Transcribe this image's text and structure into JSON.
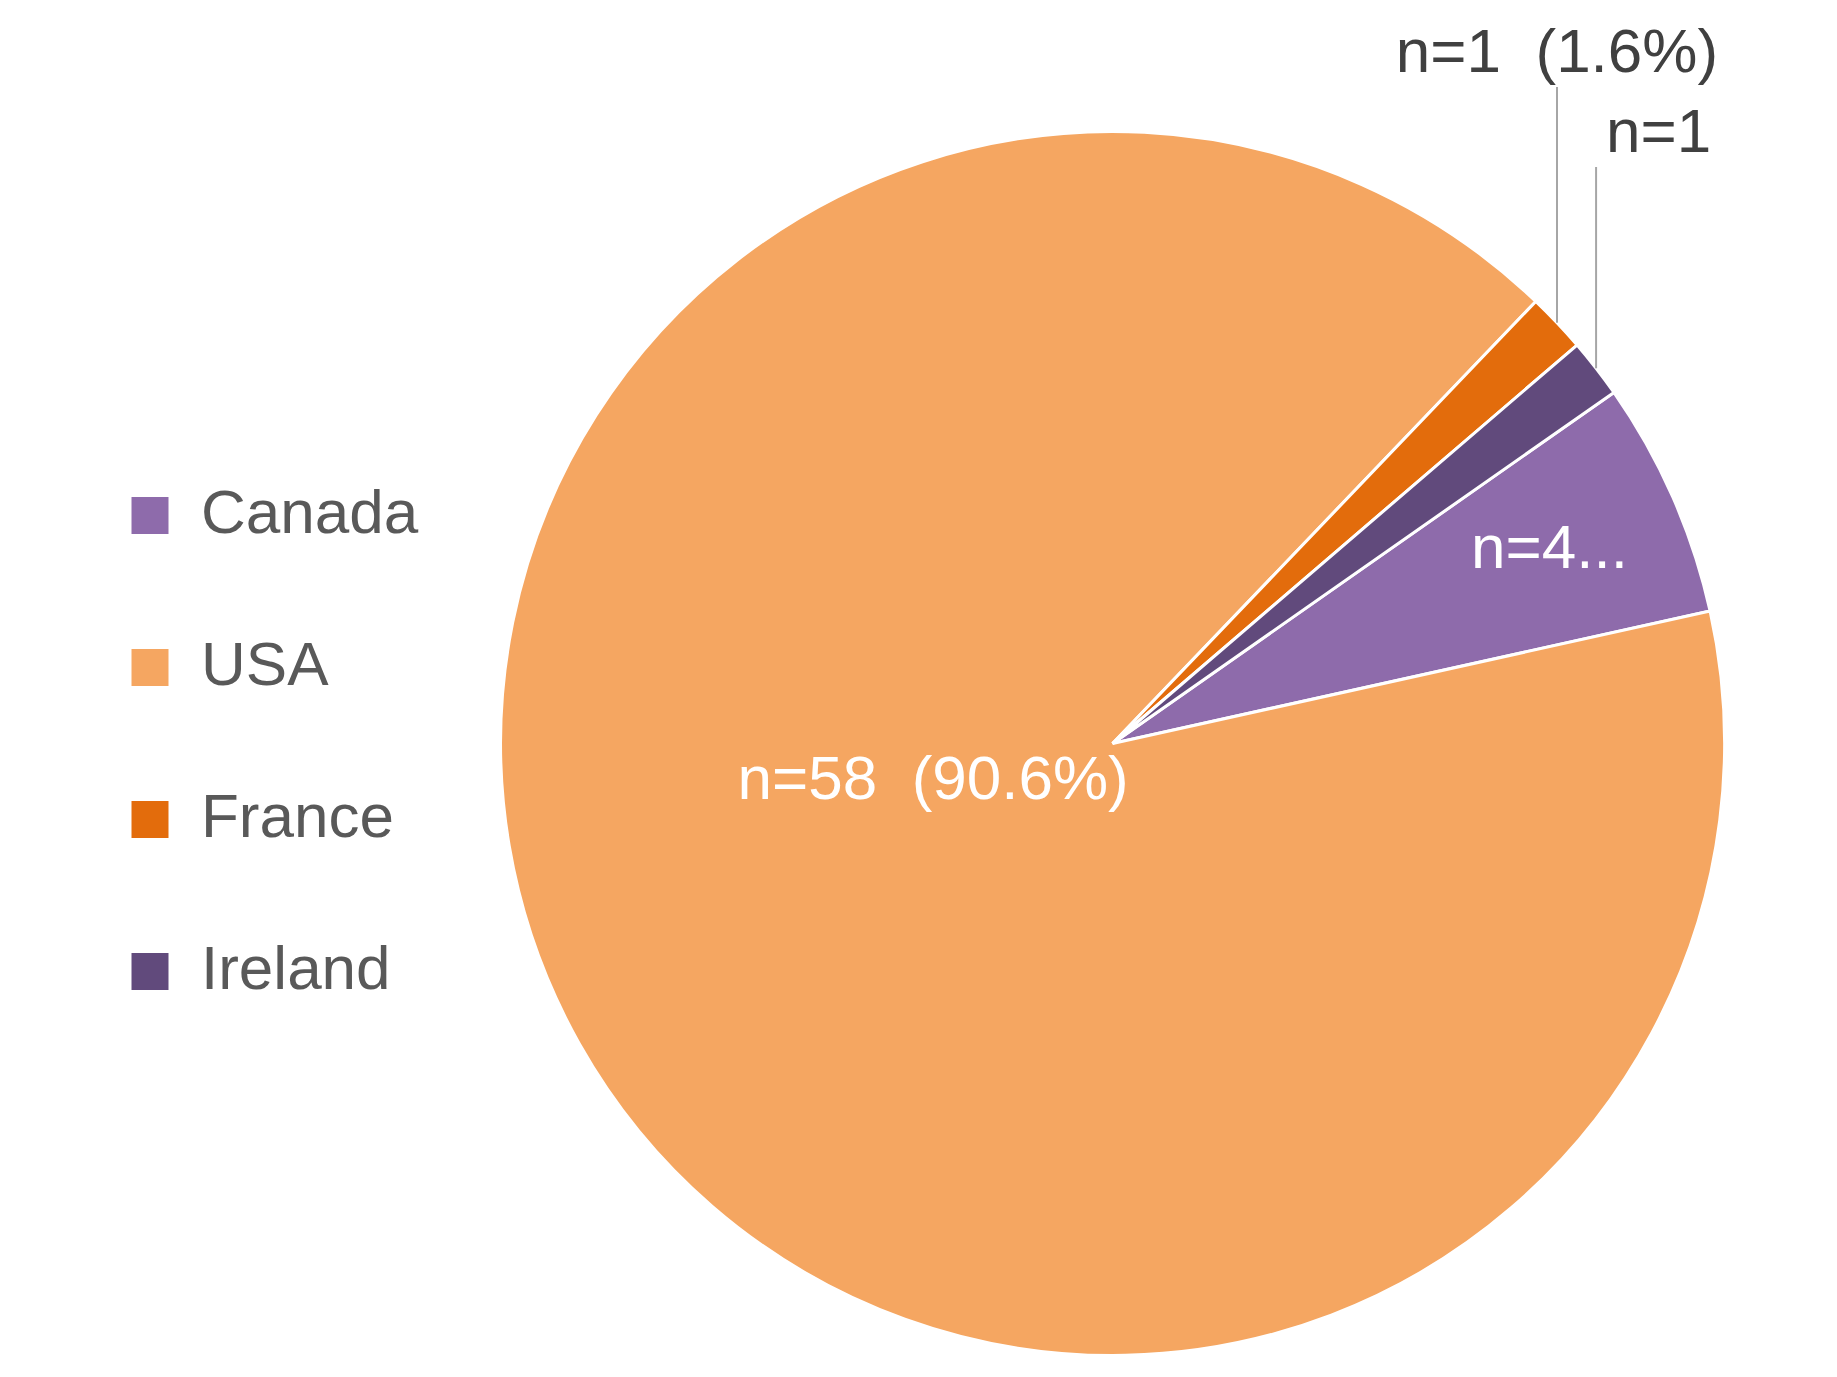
{
  "chart_data": {
    "type": "pie",
    "categories": [
      "Canada",
      "USA",
      "France",
      "Ireland"
    ],
    "values": [
      4,
      58,
      1,
      1
    ],
    "colors": [
      "#8e6bab",
      "#f5a661",
      "#e36c0c",
      "#614a7c"
    ],
    "value_labels": [
      "n=4...",
      "n=58  (90.6%)",
      "n=1  (1.6%)",
      "n=1"
    ],
    "legend": "left"
  }
}
